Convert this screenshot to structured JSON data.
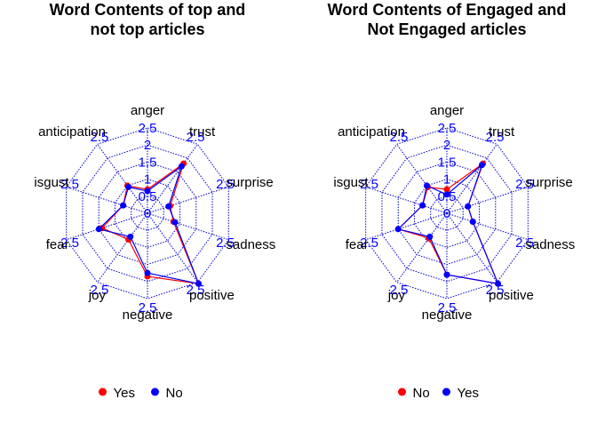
{
  "chart_data": [
    {
      "type": "radar",
      "title_lines": [
        "Word Contents of top and",
        "not top articles"
      ],
      "axes": [
        "anger",
        "trust",
        "surprise",
        "sadness",
        "positive",
        "negative",
        "joy",
        "fear",
        "disgust",
        "anticipation"
      ],
      "axis_labels_shown": [
        "anger",
        "trust",
        "surprise",
        "sadness",
        "positive",
        "negative",
        "joy",
        "fear",
        "isgust",
        "anticipation"
      ],
      "range": [
        0,
        2.5
      ],
      "ring_levels": [
        0,
        0.5,
        1,
        1.5,
        2,
        2.5
      ],
      "ring_tick_labels": [
        "0",
        "0.5",
        "1",
        "1.5",
        "2",
        "2.5"
      ],
      "outer_tick_label": "2.5",
      "legend": {
        "placement": "bottom",
        "entries": [
          "Yes",
          "No"
        ]
      },
      "series": [
        {
          "name": "Yes",
          "color": "#ff0000",
          "values": [
            0.7,
            1.8,
            0.7,
            0.8,
            2.55,
            1.85,
            0.95,
            1.4,
            0.75,
            1.0
          ]
        },
        {
          "name": "No",
          "color": "#0000ff",
          "values": [
            0.65,
            1.7,
            0.65,
            0.85,
            2.55,
            1.75,
            0.85,
            1.5,
            0.75,
            0.95
          ]
        }
      ]
    },
    {
      "type": "radar",
      "title_lines": [
        "Word Contents of Engaged and",
        "Not Engaged articles"
      ],
      "axes": [
        "anger",
        "trust",
        "surprise",
        "sadness",
        "positive",
        "negative",
        "joy",
        "fear",
        "disgust",
        "anticipation"
      ],
      "axis_labels_shown": [
        "anger",
        "trust",
        "surprise",
        "sadness",
        "positive",
        "negative",
        "joy",
        "fear",
        "isgust",
        "anticipation"
      ],
      "range": [
        0,
        2.5
      ],
      "ring_levels": [
        0,
        0.5,
        1,
        1.5,
        2,
        2.5
      ],
      "ring_tick_labels": [
        "0",
        "0.5",
        "1",
        "1.5",
        "2",
        "2.5"
      ],
      "outer_tick_label": "2.5",
      "legend": {
        "placement": "bottom",
        "entries": [
          "No",
          "Yes"
        ]
      },
      "series": [
        {
          "name": "No",
          "color": "#ff0000",
          "values": [
            0.7,
            1.8,
            0.65,
            0.8,
            2.55,
            1.8,
            0.9,
            1.5,
            0.75,
            0.95
          ]
        },
        {
          "name": "Yes",
          "color": "#0000ff",
          "values": [
            0.55,
            1.75,
            0.65,
            0.8,
            2.55,
            1.8,
            0.85,
            1.5,
            0.75,
            1.0
          ]
        }
      ]
    }
  ],
  "style": {
    "grid_color": "#0000cc",
    "tick_label_color": "#0000ff",
    "text_color": "#000000"
  }
}
